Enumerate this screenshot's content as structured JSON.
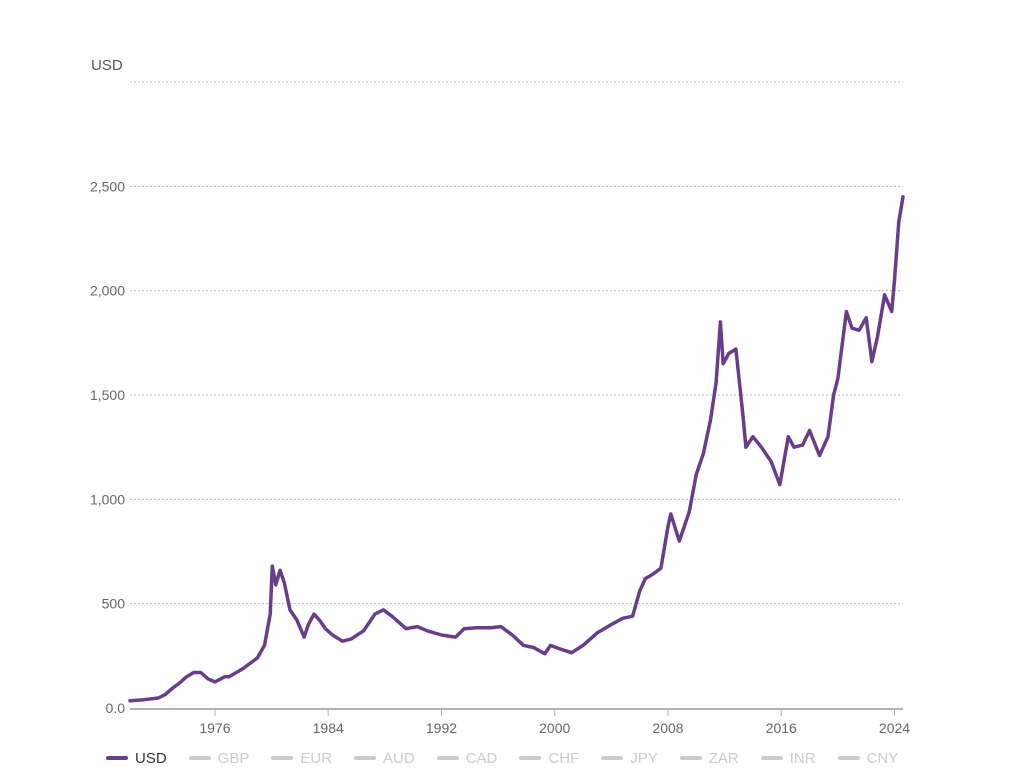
{
  "chart_data": {
    "type": "line",
    "title": "",
    "ylabel": "USD",
    "xlabel": "",
    "ylim": [
      0,
      3000
    ],
    "xlim": [
      1970.0,
      2024.6
    ],
    "grid": true,
    "legend_placement": "bottom-left",
    "x_ticks": [
      1976,
      1984,
      1992,
      2000,
      2008,
      2016,
      2024
    ],
    "x_tick_labels": [
      "1976",
      "1984",
      "1992",
      "2000",
      "2008",
      "2016",
      "2024"
    ],
    "y_ticks": [
      0,
      500,
      1000,
      1500,
      2000,
      2500
    ],
    "y_tick_labels": [
      "0.0",
      "500",
      "1,000",
      "1,500",
      "2,000",
      "2,500"
    ],
    "series": [
      {
        "name": "USD",
        "color": "#6a3d8c",
        "active": true,
        "x": [
          1970.0,
          1971.0,
          1972.0,
          1972.5,
          1973.0,
          1973.5,
          1974.0,
          1974.5,
          1975.0,
          1975.5,
          1976.0,
          1976.7,
          1977.0,
          1978.0,
          1979.0,
          1979.5,
          1979.9,
          1980.05,
          1980.3,
          1980.6,
          1980.9,
          1981.3,
          1981.8,
          1982.3,
          1982.6,
          1983.0,
          1983.4,
          1983.8,
          1984.3,
          1985.0,
          1985.6,
          1986.5,
          1987.3,
          1987.9,
          1988.5,
          1989.5,
          1990.3,
          1991.0,
          1992.0,
          1993.0,
          1993.6,
          1994.5,
          1995.5,
          1996.2,
          1997.0,
          1997.8,
          1998.5,
          1999.3,
          1999.7,
          2000.5,
          2001.2,
          2002.0,
          2003.0,
          2004.0,
          2004.8,
          2005.5,
          2006.0,
          2006.4,
          2006.9,
          2007.5,
          2008.0,
          2008.2,
          2008.8,
          2009.5,
          2010.0,
          2010.5,
          2011.0,
          2011.4,
          2011.7,
          2011.9,
          2012.3,
          2012.8,
          2013.3,
          2013.5,
          2014.0,
          2014.6,
          2015.3,
          2015.9,
          2016.5,
          2016.9,
          2017.5,
          2018.0,
          2018.7,
          2019.3,
          2019.7,
          2020.0,
          2020.6,
          2021.0,
          2021.5,
          2022.0,
          2022.4,
          2022.8,
          2023.3,
          2023.8,
          2024.0,
          2024.3,
          2024.6
        ],
        "values": [
          35,
          40,
          48,
          65,
          95,
          120,
          150,
          170,
          170,
          140,
          125,
          150,
          150,
          190,
          240,
          300,
          450,
          680,
          590,
          660,
          600,
          470,
          420,
          340,
          400,
          450,
          420,
          380,
          350,
          320,
          330,
          370,
          450,
          470,
          440,
          380,
          390,
          370,
          350,
          340,
          380,
          385,
          385,
          390,
          350,
          300,
          290,
          260,
          300,
          280,
          265,
          300,
          360,
          400,
          430,
          440,
          560,
          620,
          640,
          670,
          870,
          930,
          800,
          940,
          1120,
          1220,
          1380,
          1560,
          1850,
          1650,
          1700,
          1720,
          1400,
          1250,
          1300,
          1250,
          1180,
          1070,
          1300,
          1250,
          1260,
          1330,
          1210,
          1300,
          1500,
          1580,
          1900,
          1820,
          1810,
          1870,
          1660,
          1780,
          1980,
          1900,
          2050,
          2330,
          2450
        ]
      },
      {
        "name": "GBP",
        "color": "#cccccc",
        "active": false
      },
      {
        "name": "EUR",
        "color": "#cccccc",
        "active": false
      },
      {
        "name": "AUD",
        "color": "#cccccc",
        "active": false
      },
      {
        "name": "CAD",
        "color": "#cccccc",
        "active": false
      },
      {
        "name": "CHF",
        "color": "#cccccc",
        "active": false
      },
      {
        "name": "JPY",
        "color": "#cccccc",
        "active": false
      },
      {
        "name": "ZAR",
        "color": "#cccccc",
        "active": false
      },
      {
        "name": "INR",
        "color": "#cccccc",
        "active": false
      },
      {
        "name": "CNY",
        "color": "#cccccc",
        "active": false
      }
    ]
  }
}
